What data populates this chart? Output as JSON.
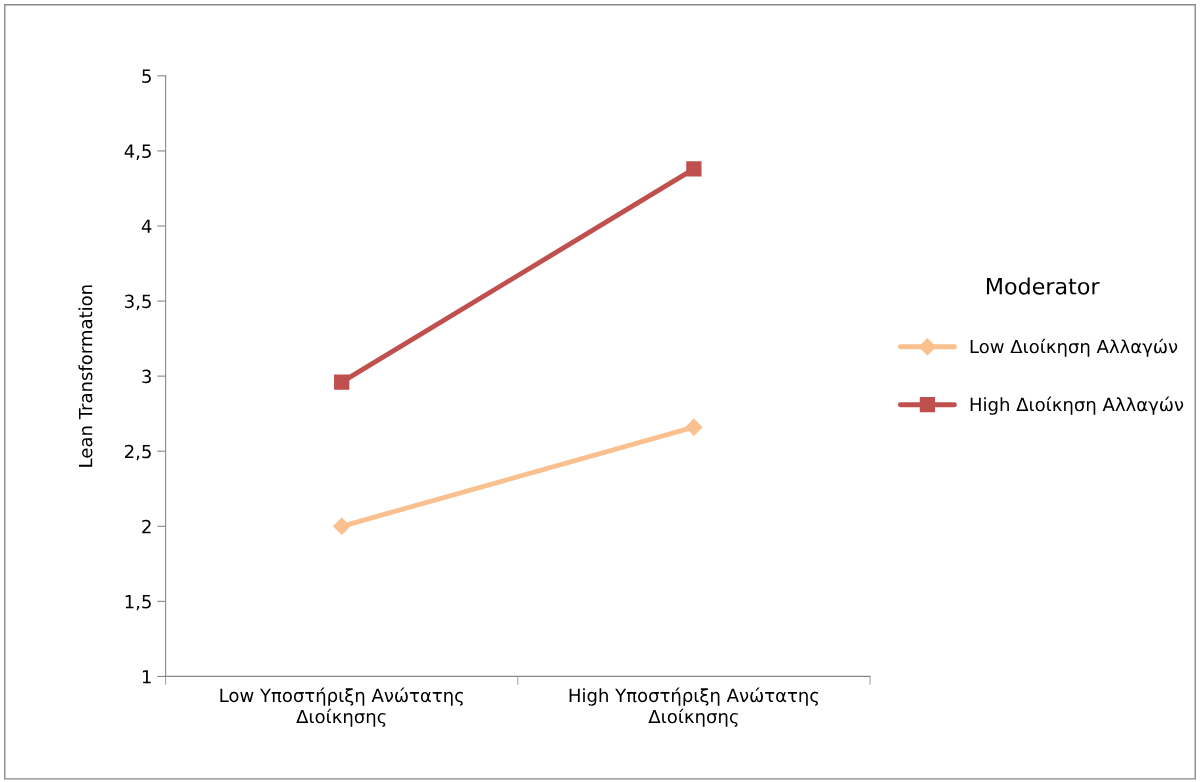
{
  "chart_data": {
    "type": "line",
    "ylabel": "Lean Transformation",
    "legend_title": "Moderator",
    "categories": [
      "Low Υποστήριξη Ανώτατης\nΔιοίκησης",
      "High Υποστήριξη Ανώτατης\nΔιοίκησης"
    ],
    "series": [
      {
        "name": "Low Διοίκηση Αλλαγών",
        "color": "#fac090",
        "values": [
          2.0,
          2.66
        ],
        "marker": "diamond"
      },
      {
        "name": "High Διοίκηση Αλλαγών",
        "color": "#c0504d",
        "values": [
          2.96,
          4.38
        ],
        "marker": "square"
      }
    ],
    "ylim": [
      1,
      5
    ],
    "yticks": [
      1,
      {
        "value": 1.5,
        "label": "1,5"
      },
      2,
      {
        "value": 2.5,
        "label": "2,5"
      },
      3,
      {
        "value": 3.5,
        "label": "3,5"
      },
      4,
      {
        "value": 4.5,
        "label": "4,5"
      },
      5
    ],
    "grid": false,
    "legend": "right",
    "line_style": "solid"
  }
}
